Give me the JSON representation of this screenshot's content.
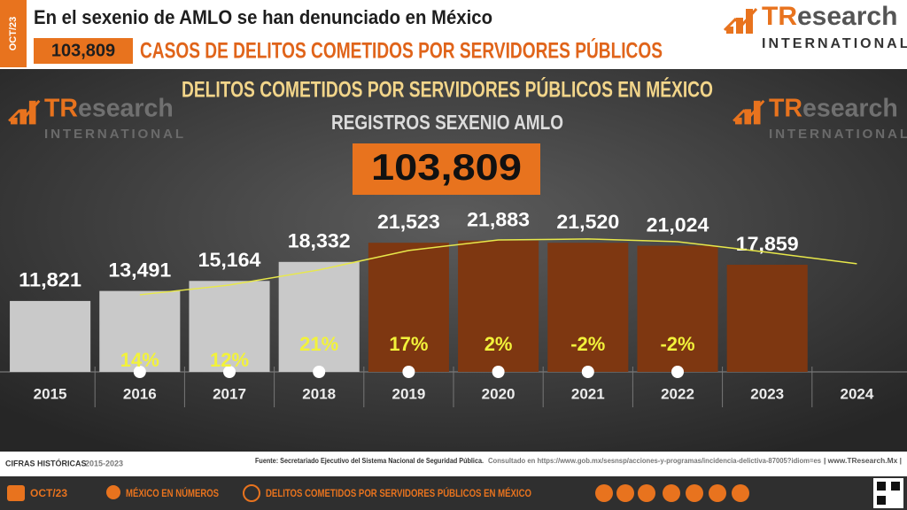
{
  "header": {
    "date_tab": "OCT/23",
    "headline": "En el sexenio de AMLO se han denunciado en México",
    "total": "103,809",
    "subheadline": "CASOS DE DELITOS COMETIDOS POR SERVIDORES PÚBLICOS"
  },
  "logo": {
    "mark": "TR",
    "word": "esearch",
    "tagline": "INTERNATIONAL"
  },
  "chart_data": {
    "type": "bar",
    "title": "DELITOS COMETIDOS POR SERVIDORES PÚBLICOS EN MÉXICO",
    "subtitle": "REGISTROS SEXENIO AMLO",
    "total": "103,809",
    "categories": [
      "2015",
      "2016",
      "2017",
      "2018",
      "2019",
      "2020",
      "2021",
      "2022",
      "2023",
      "2024"
    ],
    "values": [
      11821,
      13491,
      15164,
      18332,
      21523,
      21883,
      21520,
      21024,
      17859,
      null
    ],
    "value_labels": [
      "11,821",
      "13,491",
      "15,164",
      "18,332",
      "21,523",
      "21,883",
      "21,520",
      "21,024",
      "17,859",
      null
    ],
    "colors": [
      "#c9c9c9",
      "#c9c9c9",
      "#c9c9c9",
      "#c9c9c9",
      "#7e3711",
      "#7e3711",
      "#7e3711",
      "#7e3711",
      "#7e3711",
      null
    ],
    "changes": [
      null,
      14,
      12,
      21,
      17,
      2,
      -2,
      -2,
      null,
      null
    ],
    "change_labels": [
      null,
      "14%",
      "12%",
      "21%",
      "17%",
      "2%",
      "-2%",
      "-2%",
      null,
      null
    ],
    "trend": {
      "color": "#e8e84a",
      "values": [
        null,
        12850,
        14480,
        17000,
        20240,
        22000,
        22150,
        21700,
        19940,
        18020
      ]
    },
    "ylim": [
      0,
      40000
    ]
  },
  "source": {
    "note_label": "CIFRAS HISTÓRICAS",
    "note_years": "2015-2023",
    "source": "Fuente: Secretariado Ejecutivo del Sistema Nacional de Seguridad Pública.",
    "consulted": "Consultado en https://www.gob.mx/sesnsp/acciones-y-programas/incidencia-delictiva-87005?idiom=es",
    "site": "| www.TResearch.Mx |"
  },
  "footer": {
    "date": "OCT/23",
    "section": "MÉXICO EN NÚMEROS",
    "topic": "DELITOS COMETIDOS POR SERVIDORES PÚBLICOS EN MÉXICO"
  }
}
